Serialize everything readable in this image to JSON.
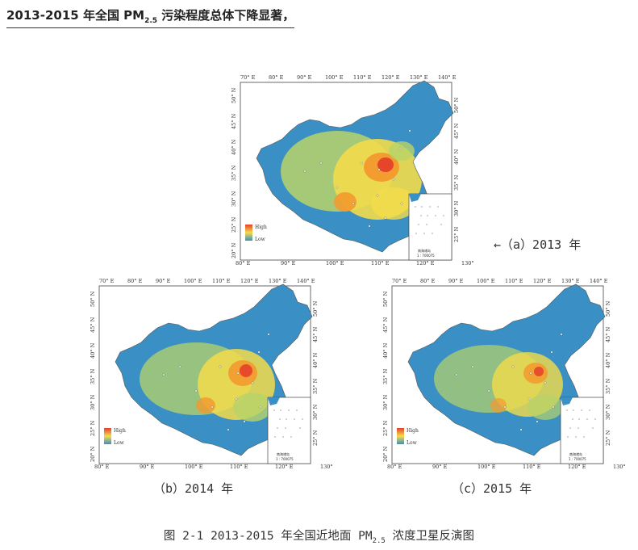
{
  "heading": {
    "prefix": "2013-2015 年全国 PM",
    "sub": "2.5",
    "suffix": " 污染程度总体下降显著，"
  },
  "lon_labels": [
    "70° E",
    "80° E",
    "90° E",
    "100° E",
    "110° E",
    "120° E",
    "130° E",
    "140° E"
  ],
  "lon_bottom_labels": [
    "80° E",
    "90° E",
    "100° E",
    "110° E",
    "120° E",
    "130° E"
  ],
  "lat_labels": [
    "50° N",
    "45° N",
    "40° N",
    "35° N",
    "30° N",
    "25° N",
    "20° N"
  ],
  "legend": {
    "high": "High",
    "low": "Low"
  },
  "inset_label": {
    "name": "南海诸岛",
    "scale": "1 : 700075"
  },
  "captions": {
    "a": "←（a）2013 年",
    "b": "（b）2014 年",
    "c": "（c）2015 年"
  },
  "figure_caption": {
    "prefix": "图 2-1   2013-2015 年全国近地面 PM",
    "sub": "2.5",
    "suffix": " 浓度卫星反演图"
  },
  "colors": {
    "low": "#3a8fc4",
    "mid": "#b8d36a",
    "yellow": "#f3dc4a",
    "orange": "#f39a2e",
    "high": "#e5402a"
  }
}
